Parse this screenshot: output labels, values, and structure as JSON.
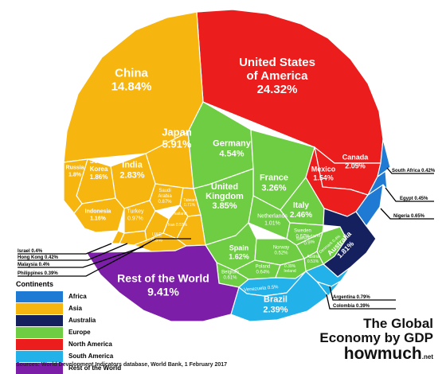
{
  "chart_data": {
    "type": "treemap",
    "title": "The Global Economy by GDP",
    "unit": "% of world GDP",
    "legend_position": "bottom-left",
    "legend": {
      "title": "Continents",
      "items": [
        {
          "name": "Africa",
          "color": "#1f7ad4"
        },
        {
          "name": "Asia",
          "color": "#f7b50f"
        },
        {
          "name": "Australia",
          "color": "#15215f"
        },
        {
          "name": "Europe",
          "color": "#6fcd44"
        },
        {
          "name": "North America",
          "color": "#ec1d1d"
        },
        {
          "name": "South America",
          "color": "#22b1e8"
        },
        {
          "name": "Rest of the World",
          "color": "#7c1ea8"
        }
      ]
    },
    "countries": [
      {
        "name": "United States of America",
        "value_label": "24.32%",
        "value": 24.32,
        "continent": "North America"
      },
      {
        "name": "China",
        "value_label": "14.84%",
        "value": 14.84,
        "continent": "Asia"
      },
      {
        "name": "Rest of the World",
        "value_label": "9.41%",
        "value": 9.41,
        "continent": "Rest of the World"
      },
      {
        "name": "Japan",
        "value_label": "5.91%",
        "value": 5.91,
        "continent": "Asia"
      },
      {
        "name": "Germany",
        "value_label": "4.54%",
        "value": 4.54,
        "continent": "Europe"
      },
      {
        "name": "United Kingdom",
        "value_label": "3.85%",
        "value": 3.85,
        "continent": "Europe"
      },
      {
        "name": "France",
        "value_label": "3.26%",
        "value": 3.26,
        "continent": "Europe"
      },
      {
        "name": "India",
        "value_label": "2.83%",
        "value": 2.83,
        "continent": "Asia"
      },
      {
        "name": "Italy",
        "value_label": "2.46%",
        "value": 2.46,
        "continent": "Europe"
      },
      {
        "name": "Brazil",
        "value_label": "2.39%",
        "value": 2.39,
        "continent": "South America"
      },
      {
        "name": "Canada",
        "value_label": "2.09%",
        "value": 2.09,
        "continent": "North America"
      },
      {
        "name": "South Korea",
        "value_label": "1.86%",
        "value": 1.86,
        "continent": "Asia"
      },
      {
        "name": "Russia",
        "value_label": "1.8%",
        "value": 1.8,
        "continent": "Asia"
      },
      {
        "name": "Australia",
        "value_label": "1.81%",
        "value": 1.81,
        "continent": "Australia"
      },
      {
        "name": "Spain",
        "value_label": "1.62%",
        "value": 1.62,
        "continent": "Europe"
      },
      {
        "name": "Mexico",
        "value_label": "1.54%",
        "value": 1.54,
        "continent": "North America"
      },
      {
        "name": "Indonesia",
        "value_label": "1.16%",
        "value": 1.16,
        "continent": "Asia"
      },
      {
        "name": "Netherlands",
        "value_label": "1.01%",
        "value": 1.01,
        "continent": "Europe"
      },
      {
        "name": "Turkey",
        "value_label": "0.97%",
        "value": 0.97,
        "continent": "Asia"
      },
      {
        "name": "Switzerland",
        "value_label": "0.9%",
        "value": 0.9,
        "continent": "Europe"
      },
      {
        "name": "Saudi Arabia",
        "value_label": "0.87%",
        "value": 0.87,
        "continent": "Asia"
      },
      {
        "name": "Argentina",
        "value_label": "0.79%",
        "value": 0.79,
        "continent": "South America"
      },
      {
        "name": "Sweden",
        "value_label": "0.67%",
        "value": 0.67,
        "continent": "Europe"
      },
      {
        "name": "Nigeria",
        "value_label": "0.65%",
        "value": 0.65,
        "continent": "Africa"
      },
      {
        "name": "Poland",
        "value_label": "0.64%",
        "value": 0.64,
        "continent": "Europe"
      },
      {
        "name": "Belgium",
        "value_label": "0.61%",
        "value": 0.61,
        "continent": "Europe"
      },
      {
        "name": "Taiwan",
        "value_label": "0.71%",
        "value": 0.71,
        "continent": "Asia"
      },
      {
        "name": "Thailand",
        "value_label": "0.53%",
        "value": 0.53,
        "continent": "Asia"
      },
      {
        "name": "Iran",
        "value_label": "0.57%",
        "value": 0.57,
        "continent": "Asia"
      },
      {
        "name": "UAE",
        "value_label": "0.5%",
        "value": 0.5,
        "continent": "Asia"
      },
      {
        "name": "Austria",
        "value_label": "0.51%",
        "value": 0.51,
        "continent": "Europe"
      },
      {
        "name": "Norway",
        "value_label": "0.52%",
        "value": 0.52,
        "continent": "Europe"
      },
      {
        "name": "Venezuela",
        "value_label": "0.5%",
        "value": 0.5,
        "continent": "South America"
      },
      {
        "name": "Egypt",
        "value_label": "0.45%",
        "value": 0.45,
        "continent": "Africa"
      },
      {
        "name": "Israel",
        "value_label": "0.4%",
        "value": 0.4,
        "continent": "Asia"
      },
      {
        "name": "Hong Kong",
        "value_label": "0.42%",
        "value": 0.42,
        "continent": "Asia"
      },
      {
        "name": "South Africa",
        "value_label": "0.42%",
        "value": 0.42,
        "continent": "Africa"
      },
      {
        "name": "Malaysia",
        "value_label": "0.4%",
        "value": 0.4,
        "continent": "Asia"
      },
      {
        "name": "Philippines",
        "value_label": "0.39%",
        "value": 0.39,
        "continent": "Asia"
      },
      {
        "name": "Colombia",
        "value_label": "0.39%",
        "value": 0.39,
        "continent": "South America"
      },
      {
        "name": "Ireland",
        "value_label": "0.39%",
        "value": 0.39,
        "continent": "Europe"
      },
      {
        "name": "Denmark",
        "value_label": "0.4%",
        "value": 0.4,
        "continent": "Europe"
      }
    ]
  },
  "brand": {
    "line1": "The Global",
    "line2": "Economy by GDP",
    "logo": "howmuch",
    "tld": ".net"
  },
  "sources": "Sources: World Development Indicators database, World Bank, 1 February 2017"
}
